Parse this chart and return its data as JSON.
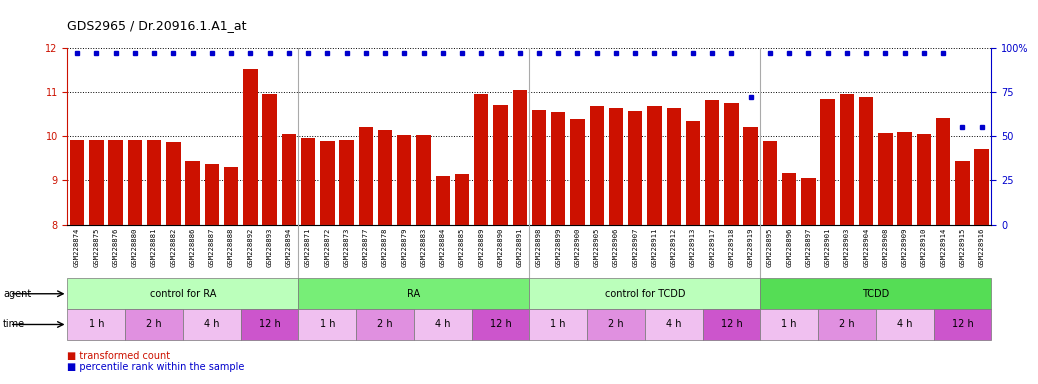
{
  "title": "GDS2965 / Dr.20916.1.A1_at",
  "samples": [
    "GSM228874",
    "GSM228875",
    "GSM228876",
    "GSM228880",
    "GSM228881",
    "GSM228882",
    "GSM228886",
    "GSM228887",
    "GSM228888",
    "GSM228892",
    "GSM228893",
    "GSM228894",
    "GSM228871",
    "GSM228872",
    "GSM228873",
    "GSM228877",
    "GSM228878",
    "GSM228879",
    "GSM228883",
    "GSM228884",
    "GSM228885",
    "GSM228889",
    "GSM228890",
    "GSM228891",
    "GSM228898",
    "GSM228899",
    "GSM228900",
    "GSM228905",
    "GSM228906",
    "GSM228907",
    "GSM228911",
    "GSM228912",
    "GSM228913",
    "GSM228917",
    "GSM228918",
    "GSM228919",
    "GSM228895",
    "GSM228896",
    "GSM228897",
    "GSM228901",
    "GSM228903",
    "GSM228904",
    "GSM228908",
    "GSM228909",
    "GSM228910",
    "GSM228914",
    "GSM228915",
    "GSM228916"
  ],
  "bar_values": [
    9.92,
    9.92,
    9.92,
    9.92,
    9.92,
    9.87,
    9.45,
    9.38,
    9.3,
    11.52,
    10.95,
    10.05,
    9.97,
    9.9,
    9.92,
    10.22,
    10.15,
    10.02,
    10.03,
    9.1,
    9.15,
    10.95,
    10.72,
    11.05,
    10.6,
    10.55,
    10.4,
    10.68,
    10.65,
    10.58,
    10.68,
    10.65,
    10.35,
    10.82,
    10.75,
    10.22,
    9.9,
    9.18,
    9.05,
    10.85,
    10.95,
    10.9,
    10.08,
    10.1,
    10.05,
    10.42,
    9.45,
    9.72
  ],
  "percentile_values": [
    97,
    97,
    97,
    97,
    97,
    97,
    97,
    97,
    97,
    97,
    97,
    97,
    97,
    97,
    97,
    97,
    97,
    97,
    97,
    97,
    97,
    97,
    97,
    97,
    97,
    97,
    97,
    97,
    97,
    97,
    97,
    97,
    97,
    97,
    97,
    72,
    97,
    97,
    97,
    97,
    97,
    97,
    97,
    97,
    97,
    97,
    55,
    55
  ],
  "ylim_left": [
    8,
    12
  ],
  "ylim_right": [
    0,
    100
  ],
  "yticks_left": [
    8,
    9,
    10,
    11,
    12
  ],
  "yticks_right": [
    0,
    25,
    50,
    75,
    100
  ],
  "bar_color": "#cc1100",
  "dot_color": "#0000cc",
  "bg_color": "#ffffff",
  "agent_groups": [
    {
      "label": "control for RA",
      "start": 0,
      "end": 11,
      "color": "#bbffbb"
    },
    {
      "label": "RA",
      "start": 12,
      "end": 23,
      "color": "#77ee77"
    },
    {
      "label": "control for TCDD",
      "start": 24,
      "end": 35,
      "color": "#bbffbb"
    },
    {
      "label": "TCDD",
      "start": 36,
      "end": 47,
      "color": "#55dd55"
    }
  ],
  "time_groups": [
    {
      "label": "1 h",
      "start": 0,
      "end": 2,
      "color": "#f0c0f0"
    },
    {
      "label": "2 h",
      "start": 3,
      "end": 5,
      "color": "#e090e0"
    },
    {
      "label": "4 h",
      "start": 6,
      "end": 8,
      "color": "#f0c0f0"
    },
    {
      "label": "12 h",
      "start": 9,
      "end": 11,
      "color": "#cc55cc"
    },
    {
      "label": "1 h",
      "start": 12,
      "end": 14,
      "color": "#f0c0f0"
    },
    {
      "label": "2 h",
      "start": 15,
      "end": 17,
      "color": "#e090e0"
    },
    {
      "label": "4 h",
      "start": 18,
      "end": 20,
      "color": "#f0c0f0"
    },
    {
      "label": "12 h",
      "start": 21,
      "end": 23,
      "color": "#cc55cc"
    },
    {
      "label": "1 h",
      "start": 24,
      "end": 26,
      "color": "#f0c0f0"
    },
    {
      "label": "2 h",
      "start": 27,
      "end": 29,
      "color": "#e090e0"
    },
    {
      "label": "4 h",
      "start": 30,
      "end": 32,
      "color": "#f0c0f0"
    },
    {
      "label": "12 h",
      "start": 33,
      "end": 35,
      "color": "#cc55cc"
    },
    {
      "label": "1 h",
      "start": 36,
      "end": 38,
      "color": "#f0c0f0"
    },
    {
      "label": "2 h",
      "start": 39,
      "end": 41,
      "color": "#e090e0"
    },
    {
      "label": "4 h",
      "start": 42,
      "end": 44,
      "color": "#f0c0f0"
    },
    {
      "label": "12 h",
      "start": 45,
      "end": 47,
      "color": "#cc55cc"
    }
  ],
  "legend_items": [
    {
      "label": "transformed count",
      "color": "#cc1100"
    },
    {
      "label": "percentile rank within the sample",
      "color": "#0000cc"
    }
  ],
  "agent_label": "agent",
  "time_label": "time",
  "title_fontsize": 9,
  "axis_fontsize": 7,
  "bar_width": 0.75,
  "n_samples": 48,
  "group_separator_color": "#999999"
}
